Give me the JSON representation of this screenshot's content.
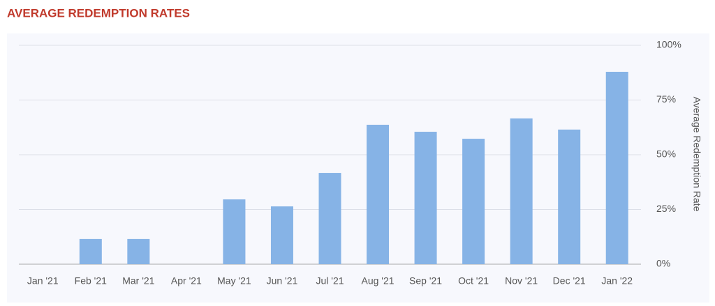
{
  "chart_data": {
    "type": "bar",
    "title": "AVERAGE REDEMPTION RATES",
    "y_axis_label": "Average Redemption Rate",
    "categories": [
      "Jan '21",
      "Feb '21",
      "Mar '21",
      "Apr '21",
      "May '21",
      "Jun '21",
      "Jul '21",
      "Aug '21",
      "Sep '21",
      "Oct '21",
      "Nov '21",
      "Dec '21",
      "Jan '22"
    ],
    "values": [
      0,
      11.5,
      11.5,
      0,
      29.6,
      26.4,
      41.7,
      63.7,
      60.5,
      57.3,
      66.6,
      61.5,
      87.9
    ],
    "color": "#86b3e6",
    "ylim": [
      0,
      100
    ],
    "yticks": [
      {
        "value": 0,
        "label": "0%"
      },
      {
        "value": 25,
        "label": "25%"
      },
      {
        "value": 50,
        "label": "50%"
      },
      {
        "value": 75,
        "label": "75%"
      },
      {
        "value": 100,
        "label": "100%"
      }
    ],
    "grid": true,
    "y_axis_side": "right"
  }
}
